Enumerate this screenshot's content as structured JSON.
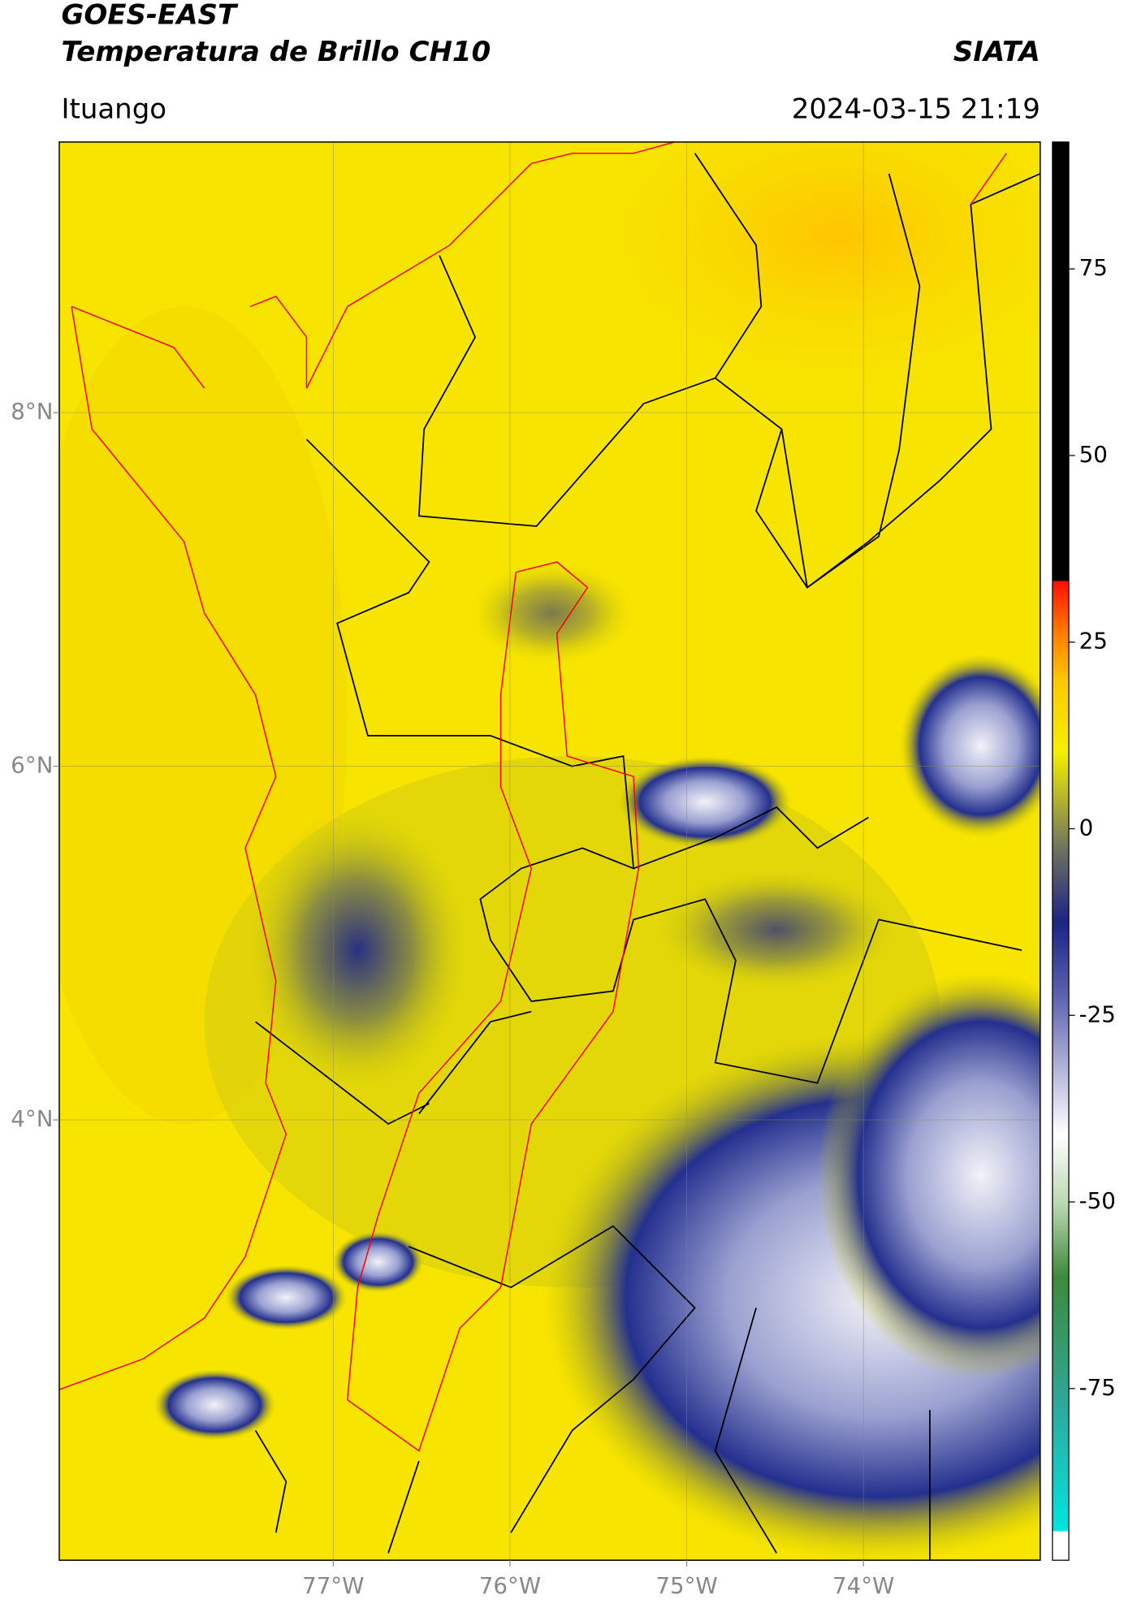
{
  "header": {
    "title": "GOES-EAST",
    "subtitle": "Temperatura de Brillo CH10",
    "source": "SIATA",
    "location": "Ituango",
    "datetime": "2024-03-15 21:19"
  },
  "map": {
    "xlim": [
      -78.55,
      -73.0
    ],
    "ylim": [
      1.51,
      9.53
    ],
    "xticks": [
      {
        "value": -77,
        "label": "77°W"
      },
      {
        "value": -76,
        "label": "76°W"
      },
      {
        "value": -75,
        "label": "75°W"
      },
      {
        "value": -74,
        "label": "74°W"
      }
    ],
    "yticks": [
      {
        "value": 8,
        "label": "8°N"
      },
      {
        "value": 6,
        "label": "6°N"
      },
      {
        "value": 4,
        "label": "4°N"
      }
    ],
    "grid": true
  },
  "colorbar": {
    "lim": [
      -98,
      92
    ],
    "ticks": [
      75,
      50,
      25,
      0,
      -25,
      -50,
      -75
    ]
  }
}
